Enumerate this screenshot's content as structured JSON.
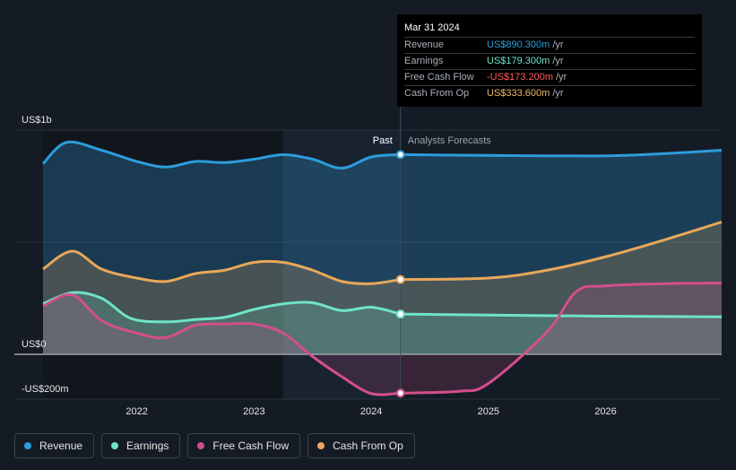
{
  "tooltip": {
    "date": "Mar 31 2024",
    "rows": [
      {
        "label": "Revenue",
        "value": "US$890.300m",
        "unit": "/yr",
        "color": "#2d9cdb"
      },
      {
        "label": "Earnings",
        "value": "US$179.300m",
        "unit": "/yr",
        "color": "#6fe3c8"
      },
      {
        "label": "Free Cash Flow",
        "value": "-US$173.200m",
        "unit": "/yr",
        "color": "#ff5a5a"
      },
      {
        "label": "Cash From Op",
        "value": "US$333.600m",
        "unit": "/yr",
        "color": "#f3b864"
      }
    ]
  },
  "legend": [
    {
      "label": "Revenue",
      "color": "#2d9cdb"
    },
    {
      "label": "Earnings",
      "color": "#6fe3c8"
    },
    {
      "label": "Free Cash Flow",
      "color": "#d34f8c"
    },
    {
      "label": "Cash From Op",
      "color": "#e8a85a"
    }
  ],
  "chart_data": {
    "type": "area",
    "y_unit": "US$ m",
    "ylim": [
      -200,
      1000
    ],
    "y_tick_labels": [
      {
        "value": 1000,
        "label": "US$1b"
      },
      {
        "value": 0,
        "label": "US$0"
      },
      {
        "value": -200,
        "label": "-US$200m"
      }
    ],
    "xlim": [
      2021.2,
      2026.99
    ],
    "x_tick_labels": [
      {
        "value": 2022,
        "label": "2022"
      },
      {
        "value": 2023,
        "label": "2023"
      },
      {
        "value": 2024,
        "label": "2024"
      },
      {
        "value": 2025,
        "label": "2025"
      },
      {
        "value": 2026,
        "label": "2026"
      }
    ],
    "past_label": "Past",
    "forecast_label": "Analysts Forecasts",
    "divider_x": 2024.25,
    "highlight_range": [
      2023.25,
      2024.25
    ],
    "series": [
      {
        "name": "Revenue",
        "color": "#2d9cdb",
        "past": [
          [
            2021.2,
            850
          ],
          [
            2021.4,
            945
          ],
          [
            2021.7,
            910
          ],
          [
            2022.0,
            860
          ],
          [
            2022.25,
            835
          ],
          [
            2022.5,
            860
          ],
          [
            2022.75,
            855
          ],
          [
            2023.0,
            870
          ],
          [
            2023.25,
            890
          ],
          [
            2023.5,
            870
          ],
          [
            2023.75,
            830
          ],
          [
            2024.0,
            880
          ],
          [
            2024.25,
            890.3
          ]
        ],
        "forecast": [
          [
            2024.25,
            890.3
          ],
          [
            2025.0,
            887
          ],
          [
            2026.0,
            885
          ],
          [
            2026.5,
            895
          ],
          [
            2026.99,
            910
          ]
        ]
      },
      {
        "name": "Cash From Op",
        "color": "#e8a85a",
        "past": [
          [
            2021.2,
            380
          ],
          [
            2021.45,
            460
          ],
          [
            2021.7,
            380
          ],
          [
            2022.0,
            340
          ],
          [
            2022.25,
            325
          ],
          [
            2022.5,
            360
          ],
          [
            2022.75,
            375
          ],
          [
            2023.0,
            410
          ],
          [
            2023.25,
            410
          ],
          [
            2023.5,
            375
          ],
          [
            2023.75,
            325
          ],
          [
            2024.0,
            315
          ],
          [
            2024.25,
            333.6
          ]
        ],
        "forecast": [
          [
            2024.25,
            333.6
          ],
          [
            2025.0,
            340
          ],
          [
            2025.5,
            375
          ],
          [
            2026.0,
            435
          ],
          [
            2026.5,
            510
          ],
          [
            2026.99,
            590
          ]
        ]
      },
      {
        "name": "Earnings",
        "color": "#6fe3c8",
        "past": [
          [
            2021.2,
            225
          ],
          [
            2021.45,
            275
          ],
          [
            2021.7,
            250
          ],
          [
            2021.95,
            160
          ],
          [
            2022.25,
            145
          ],
          [
            2022.5,
            155
          ],
          [
            2022.75,
            165
          ],
          [
            2023.0,
            200
          ],
          [
            2023.25,
            225
          ],
          [
            2023.5,
            230
          ],
          [
            2023.75,
            195
          ],
          [
            2024.0,
            210
          ],
          [
            2024.25,
            179.3
          ]
        ],
        "forecast": [
          [
            2024.25,
            179.3
          ],
          [
            2025.0,
            175
          ],
          [
            2026.0,
            170
          ],
          [
            2026.99,
            167
          ]
        ]
      },
      {
        "name": "Free Cash Flow",
        "color": "#d34f8c",
        "past": [
          [
            2021.2,
            215
          ],
          [
            2021.45,
            265
          ],
          [
            2021.7,
            150
          ],
          [
            2022.0,
            95
          ],
          [
            2022.25,
            75
          ],
          [
            2022.5,
            130
          ],
          [
            2022.75,
            135
          ],
          [
            2023.0,
            135
          ],
          [
            2023.25,
            95
          ],
          [
            2023.5,
            -10
          ],
          [
            2023.75,
            -100
          ],
          [
            2024.0,
            -175
          ],
          [
            2024.25,
            -173.2
          ]
        ],
        "forecast": [
          [
            2024.25,
            -173.2
          ],
          [
            2024.75,
            -165
          ],
          [
            2025.0,
            -130
          ],
          [
            2025.5,
            100
          ],
          [
            2025.75,
            280
          ],
          [
            2026.0,
            305
          ],
          [
            2026.5,
            315
          ],
          [
            2026.99,
            318
          ]
        ]
      }
    ],
    "points_at_divider": [
      {
        "series": "Revenue",
        "value": 890.3
      },
      {
        "series": "Cash From Op",
        "value": 333.6
      },
      {
        "series": "Earnings",
        "value": 179.3
      },
      {
        "series": "Free Cash Flow",
        "value": -173.2
      }
    ]
  }
}
